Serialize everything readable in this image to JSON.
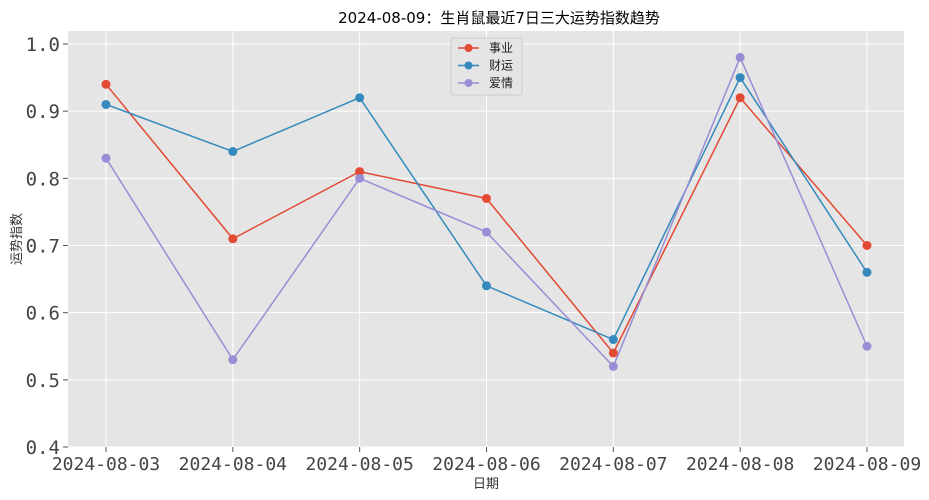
{
  "chart_data": {
    "type": "line",
    "title": "2024-08-09：生肖鼠最近7日三大运势指数趋势",
    "xlabel": "日期",
    "ylabel": "运势指数",
    "categories": [
      "2024-08-03",
      "2024-08-04",
      "2024-08-05",
      "2024-08-06",
      "2024-08-07",
      "2024-08-08",
      "2024-08-09"
    ],
    "ylim": [
      0.4,
      1.0
    ],
    "yticks": [
      "0.4",
      "0.5",
      "0.6",
      "0.7",
      "0.8",
      "0.9",
      "1.0"
    ],
    "grid": true,
    "legend_position": "top-center",
    "series": [
      {
        "name": "事业",
        "color": "#E24A33",
        "values": [
          0.94,
          0.71,
          0.81,
          0.77,
          0.54,
          0.92,
          0.7
        ]
      },
      {
        "name": "财运",
        "color": "#348ABD",
        "values": [
          0.91,
          0.84,
          0.92,
          0.64,
          0.56,
          0.95,
          0.66
        ]
      },
      {
        "name": "爱情",
        "color": "#988ED5",
        "values": [
          0.83,
          0.53,
          0.8,
          0.72,
          0.52,
          0.98,
          0.55
        ]
      }
    ]
  }
}
